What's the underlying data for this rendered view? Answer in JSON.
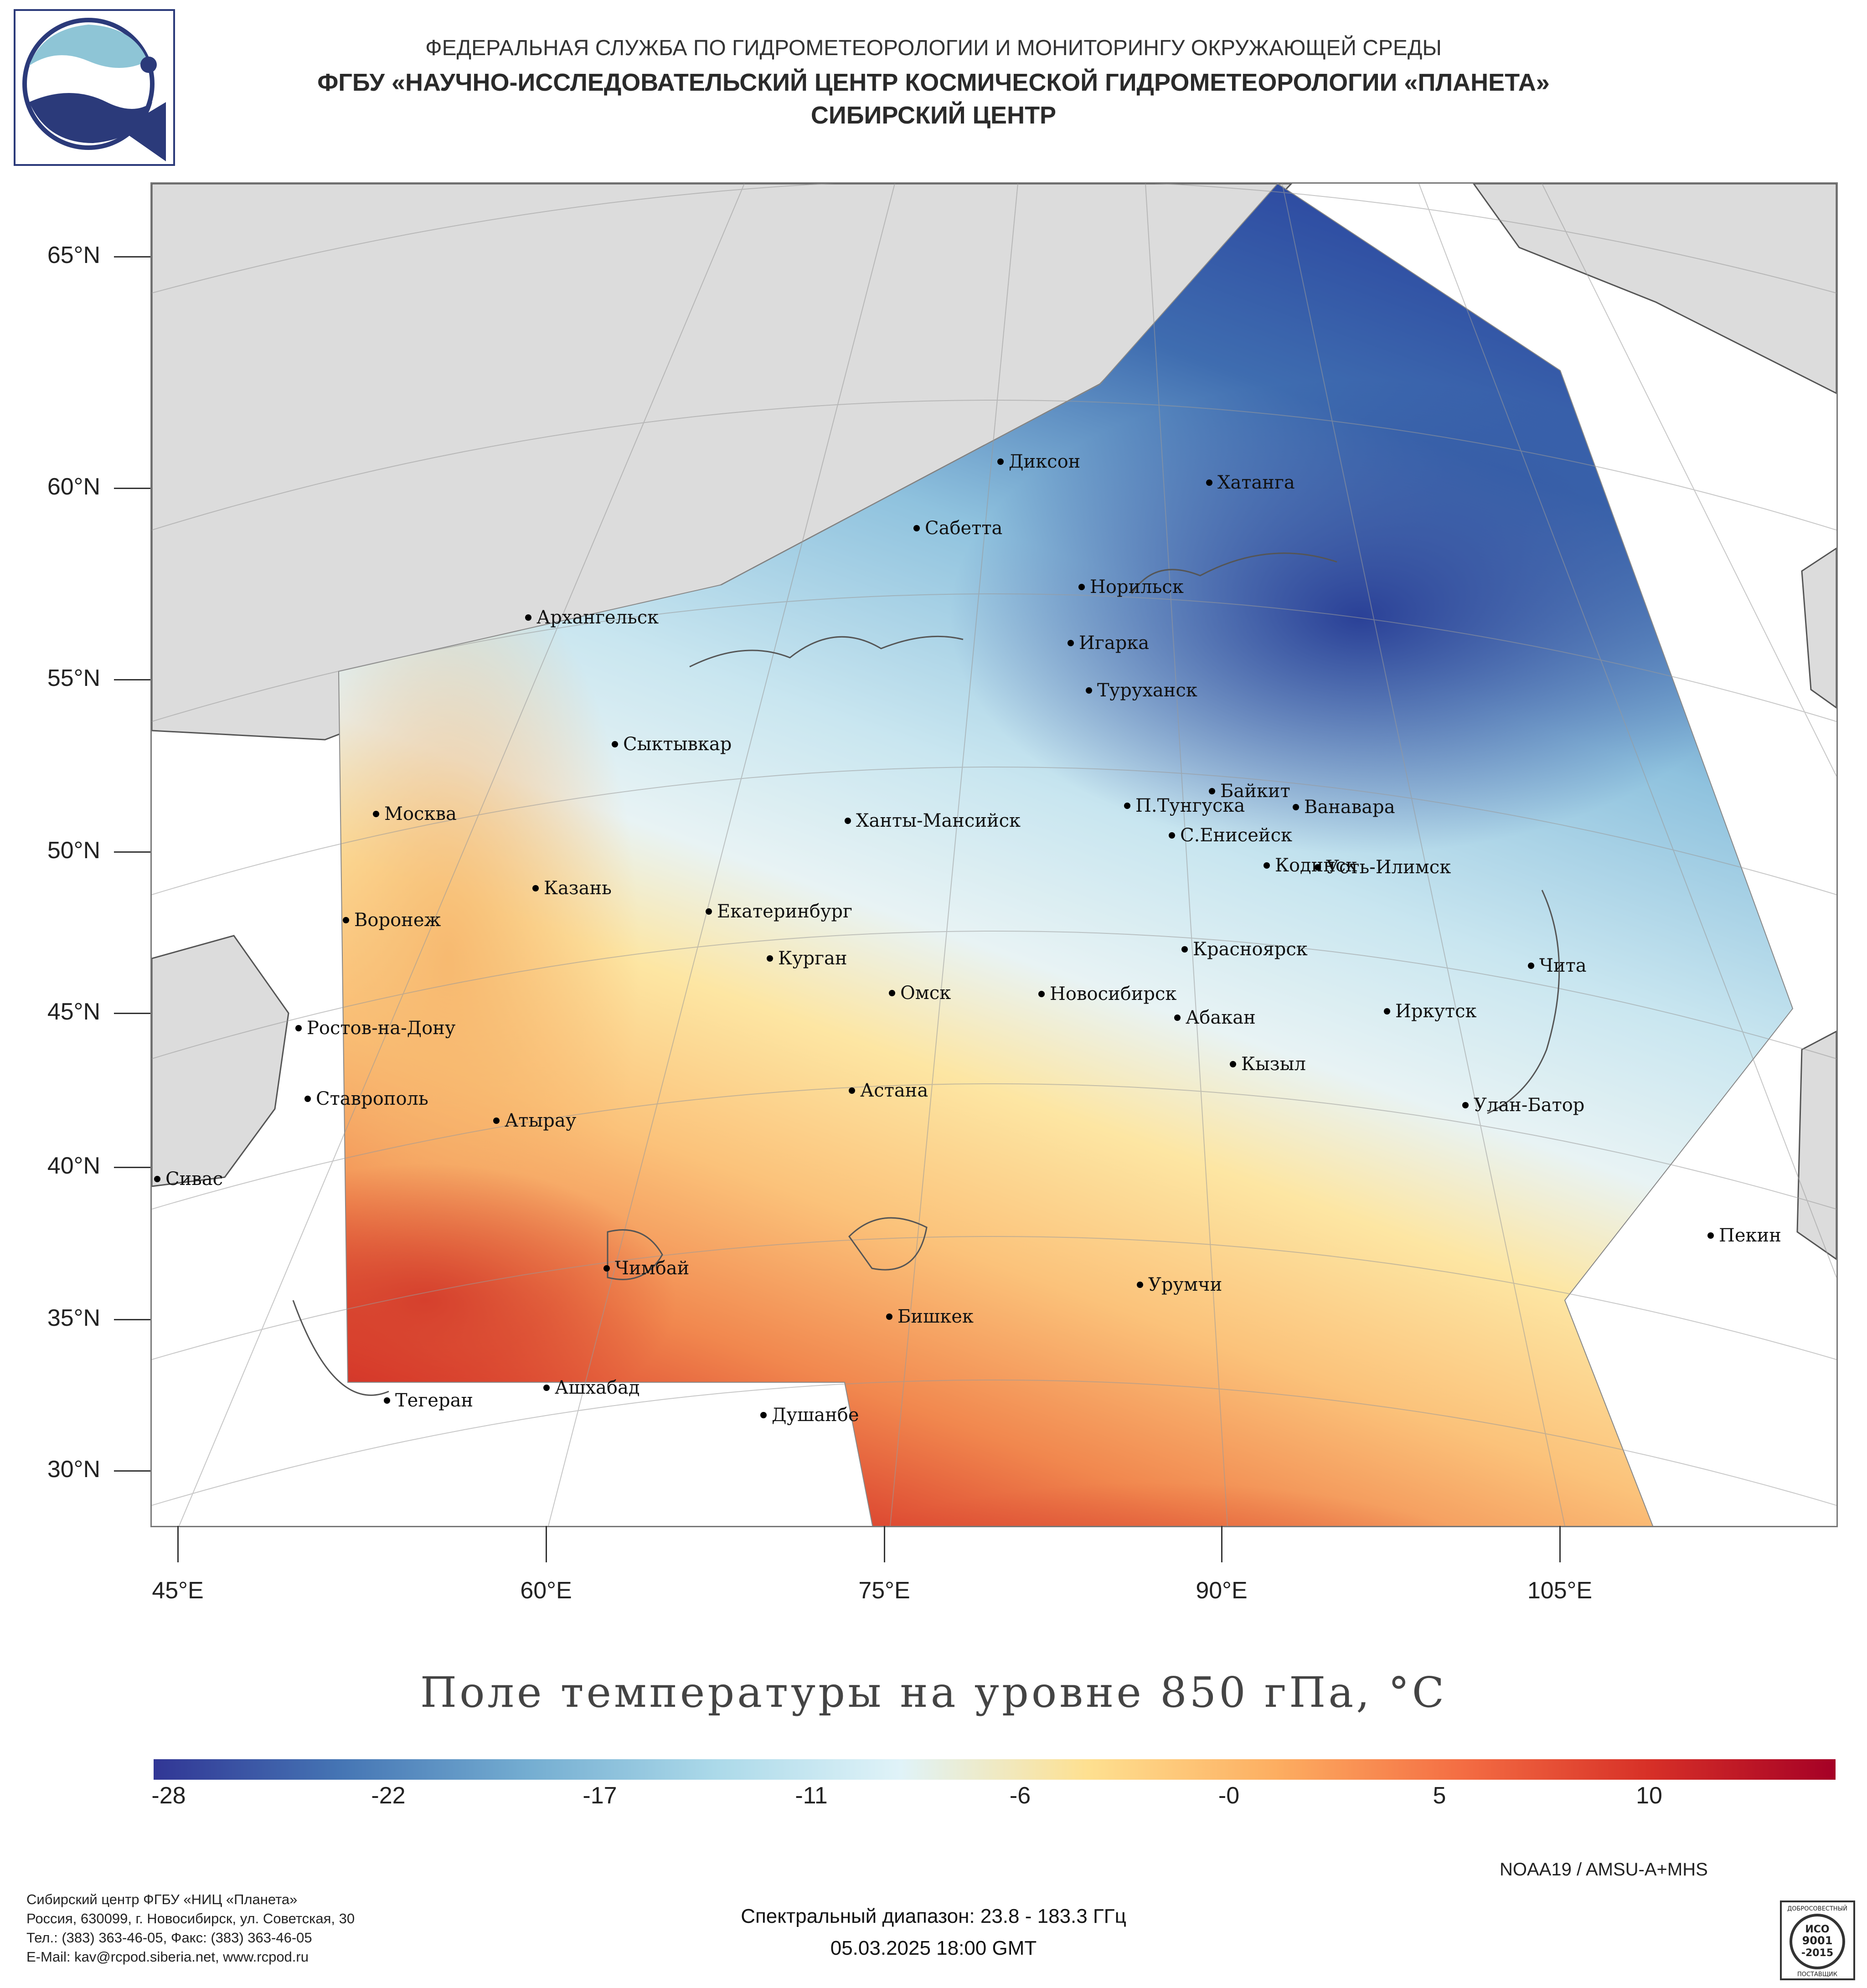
{
  "header": {
    "line1": "ФЕДЕРАЛЬНАЯ СЛУЖБА ПО ГИДРОМЕТЕОРОЛОГИИ И МОНИТОРИНГУ ОКРУЖАЮЩЕЙ СРЕДЫ",
    "line2": "ФГБУ «НАУЧНО-ИССЛЕДОВАТЕЛЬСКИЙ ЦЕНТР КОСМИЧЕСКОЙ ГИДРОМЕТЕОРОЛОГИИ «ПЛАНЕТА»",
    "line3": "СИБИРСКИЙ ЦЕНТР"
  },
  "map": {
    "lat_labels": [
      "65°N",
      "60°N",
      "55°N",
      "50°N",
      "45°N",
      "40°N",
      "35°N",
      "30°N"
    ],
    "lon_labels": [
      "45°E",
      "60°E",
      "75°E",
      "90°E",
      "105°E"
    ],
    "cities": [
      {
        "name": "Диксон"
      },
      {
        "name": "Хатанга"
      },
      {
        "name": "Сабетта"
      },
      {
        "name": "Норильск"
      },
      {
        "name": "Архангельск"
      },
      {
        "name": "Игарка"
      },
      {
        "name": "Туруханск"
      },
      {
        "name": "Сыктывкар"
      },
      {
        "name": "Байкит"
      },
      {
        "name": "П.Тунгуска"
      },
      {
        "name": "Ванавара"
      },
      {
        "name": "Москва"
      },
      {
        "name": "Ханты-Мансийск"
      },
      {
        "name": "С.Енисейск"
      },
      {
        "name": "Кодинск"
      },
      {
        "name": "Усть-Илимск"
      },
      {
        "name": "Казань"
      },
      {
        "name": "Екатеринбург"
      },
      {
        "name": "Воронеж"
      },
      {
        "name": "Красноярск"
      },
      {
        "name": "Курган"
      },
      {
        "name": "Чита"
      },
      {
        "name": "Омск"
      },
      {
        "name": "Новосибирск"
      },
      {
        "name": "Ростов-на-Дону"
      },
      {
        "name": "Иркутск"
      },
      {
        "name": "Абакан"
      },
      {
        "name": "Кызыл"
      },
      {
        "name": "Ставрополь"
      },
      {
        "name": "Астана"
      },
      {
        "name": "Улан-Батор"
      },
      {
        "name": "Атырау"
      },
      {
        "name": "Сивас"
      },
      {
        "name": "Пекин"
      },
      {
        "name": "Чимбай"
      },
      {
        "name": "Урумчи"
      },
      {
        "name": "Бишкек"
      },
      {
        "name": "Тегеран"
      },
      {
        "name": "Ашхабад"
      },
      {
        "name": "Душанбе"
      }
    ]
  },
  "chart_title": "Поле температуры на уровне 850 гПа, °C",
  "colorbar": {
    "ticks": [
      "-28",
      "-22",
      "-17",
      "-11",
      "-6",
      "-0",
      "5",
      "10"
    ],
    "colors": [
      "#313695",
      "#4575b4",
      "#74add1",
      "#abd9e9",
      "#e0f3f8",
      "#fee090",
      "#fdae61",
      "#f46d43",
      "#d73027",
      "#a50026"
    ]
  },
  "satellite": "NOAA19 / AMSU-A+MHS",
  "footer": {
    "org": "Сибирский центр ФГБУ «НИЦ «Планета»",
    "address": "Россия, 630099, г. Новосибирск, ул. Советская, 30",
    "phone": "Тел.: (383) 363-46-05, Факс: (383) 363-46-05",
    "email": "E-Mail: kav@rcpod.siberia.net, www.rcpod.ru",
    "spectral": "Спектральный диапазон: 23.8 - 183.3 ГГц",
    "datetime": "05.03.2025 18:00 GMT",
    "iso_lines": [
      "ДОБРОСОВЕСТНЫЙ",
      "ИСО",
      "9001",
      "-2015",
      "ПОСТАВЩИК"
    ]
  }
}
